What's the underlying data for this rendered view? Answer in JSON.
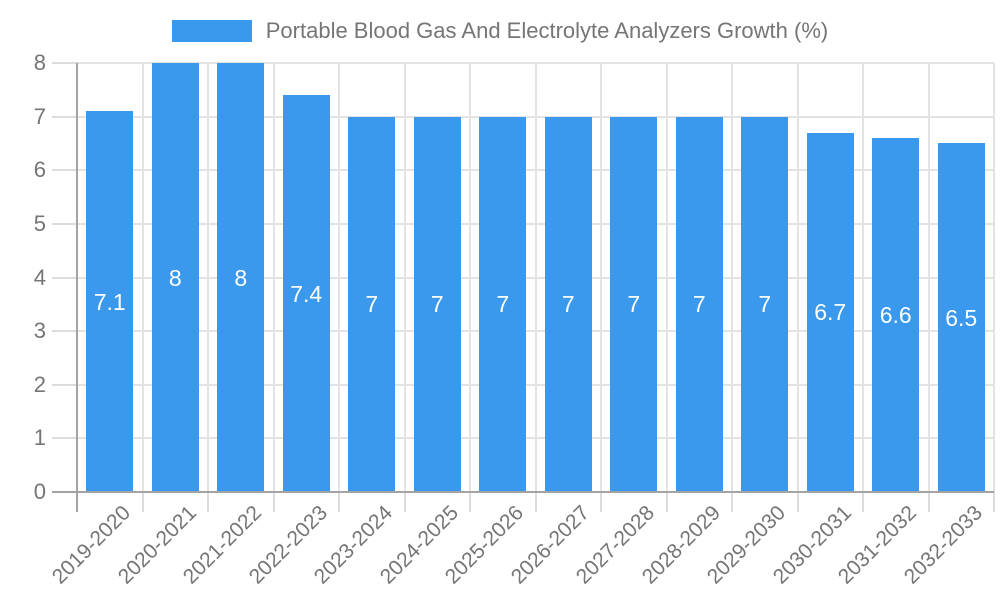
{
  "chart_data": {
    "type": "bar",
    "title": "Portable Blood Gas And Electrolyte Analyzers Growth (%)",
    "categories": [
      "2019-2020",
      "2020-2021",
      "2021-2022",
      "2022-2023",
      "2023-2024",
      "2024-2025",
      "2025-2026",
      "2026-2027",
      "2027-2028",
      "2028-2029",
      "2029-2030",
      "2030-2031",
      "2031-2032",
      "2032-2033"
    ],
    "series": [
      {
        "name": "Portable Blood Gas And Electrolyte Analyzers Growth (%)",
        "values": [
          7.1,
          8,
          8,
          7.4,
          7,
          7,
          7,
          7,
          7,
          7,
          7,
          6.7,
          6.6,
          6.5
        ],
        "bar_labels": [
          "7.1",
          "8",
          "8",
          "7.4",
          "7",
          "7",
          "7",
          "7",
          "7",
          "7",
          "7",
          "6.7",
          "6.6",
          "6.5"
        ]
      }
    ],
    "xlabel": "",
    "ylabel": "",
    "ylim": [
      0,
      8
    ],
    "ytick_step": 1,
    "ytick_labels": [
      "0",
      "1",
      "2",
      "3",
      "4",
      "5",
      "6",
      "7",
      "8"
    ],
    "grid": true,
    "legend_position": "top",
    "colors": {
      "bar": "#3B99ED",
      "gridline": "#E3E3E3",
      "axis_line": "#A3A3A3",
      "tick_line": "#DCDCDC",
      "axis_text": "#757575",
      "bar_label_text": "#FFFFFF",
      "background": "#FFFFFF"
    }
  }
}
